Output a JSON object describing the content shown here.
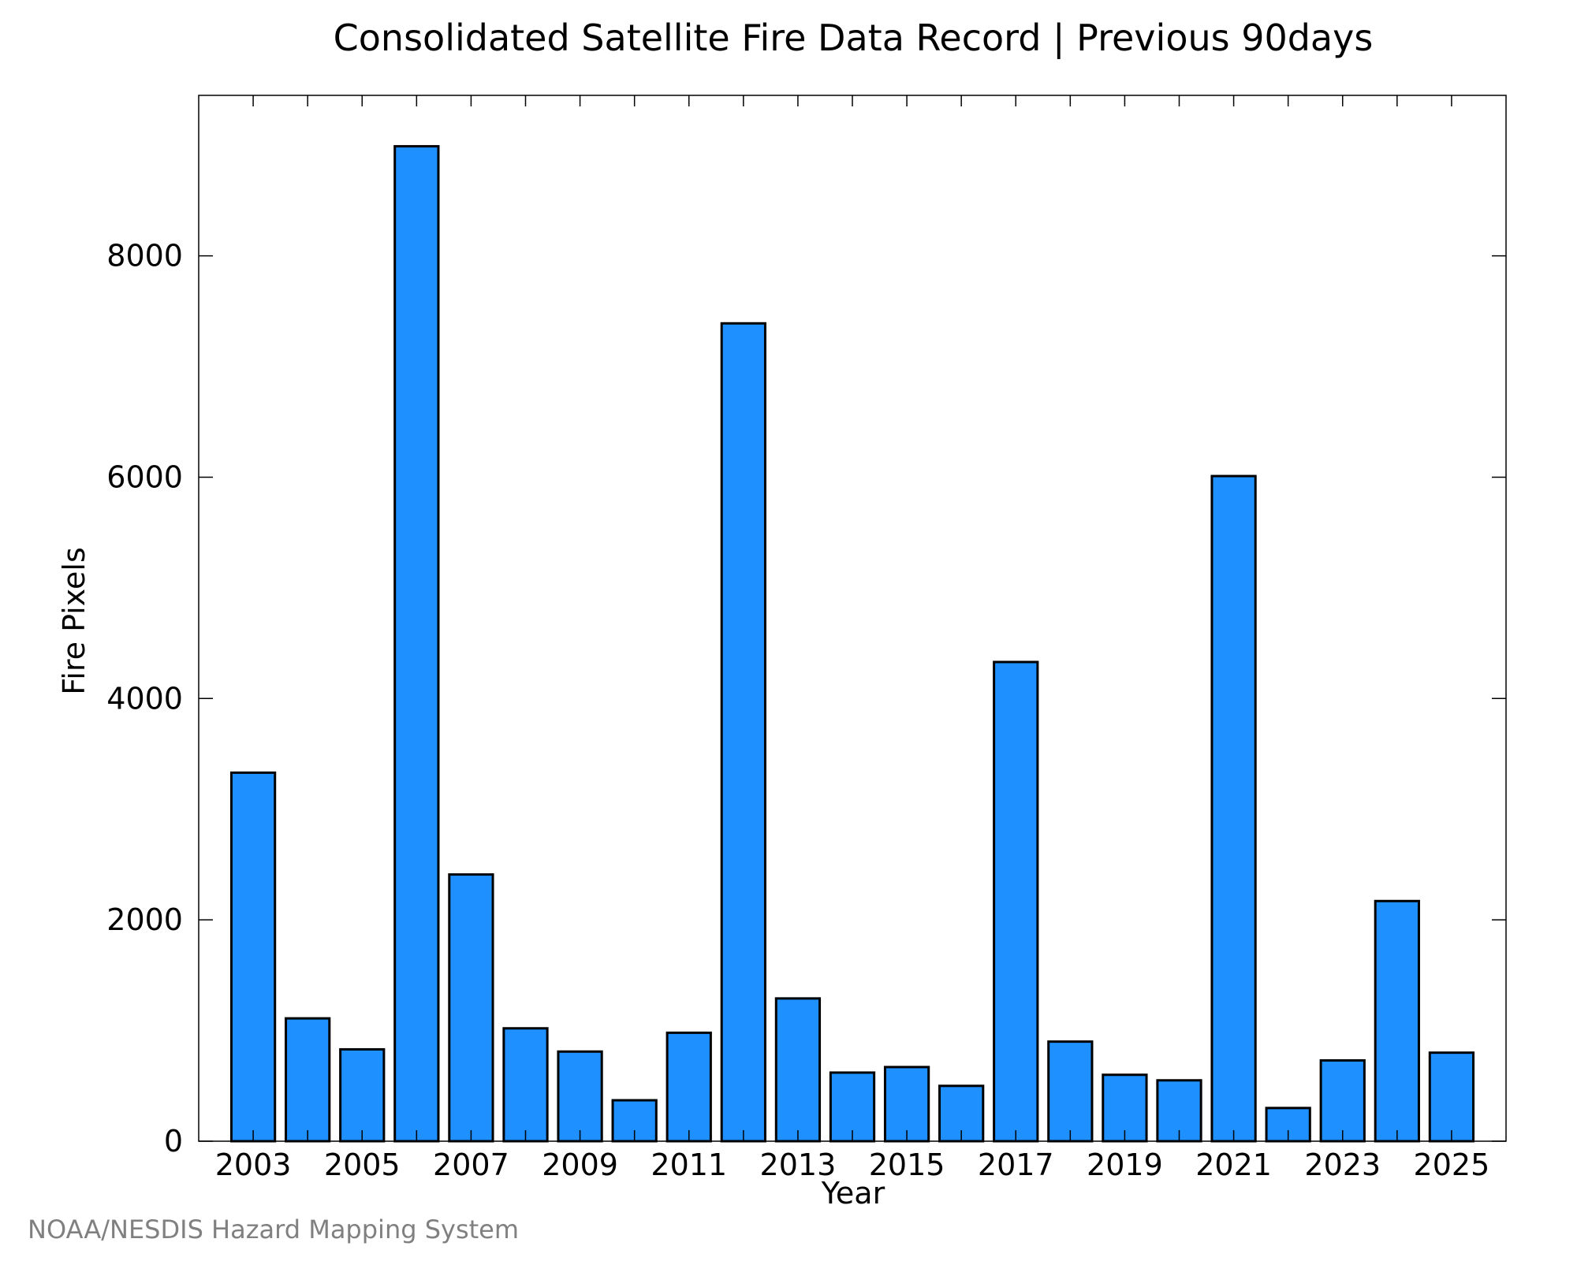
{
  "chart_data": {
    "type": "bar",
    "title": "Consolidated Satellite Fire Data Record | Previous 90days",
    "xlabel": "Year",
    "ylabel": "Fire Pixels",
    "categories": [
      "2003",
      "2004",
      "2005",
      "2006",
      "2007",
      "2008",
      "2009",
      "2010",
      "2011",
      "2012",
      "2013",
      "2014",
      "2015",
      "2016",
      "2017",
      "2018",
      "2019",
      "2020",
      "2021",
      "2022",
      "2023",
      "2024",
      "2025"
    ],
    "values": [
      3330,
      1110,
      830,
      8990,
      2410,
      1020,
      810,
      370,
      980,
      7390,
      1290,
      620,
      670,
      500,
      4330,
      900,
      600,
      550,
      6010,
      300,
      730,
      2170,
      800
    ],
    "x_tick_labels": [
      "2003",
      "2005",
      "2007",
      "2009",
      "2011",
      "2013",
      "2015",
      "2017",
      "2019",
      "2021",
      "2023",
      "2025"
    ],
    "y_ticks": [
      0,
      2000,
      4000,
      6000,
      8000
    ],
    "ylim": [
      0,
      9450
    ],
    "grid": false,
    "bar_color": "#1e90ff",
    "bar_edge_color": "#000000"
  },
  "credit": "NOAA/NESDIS Hazard Mapping System"
}
